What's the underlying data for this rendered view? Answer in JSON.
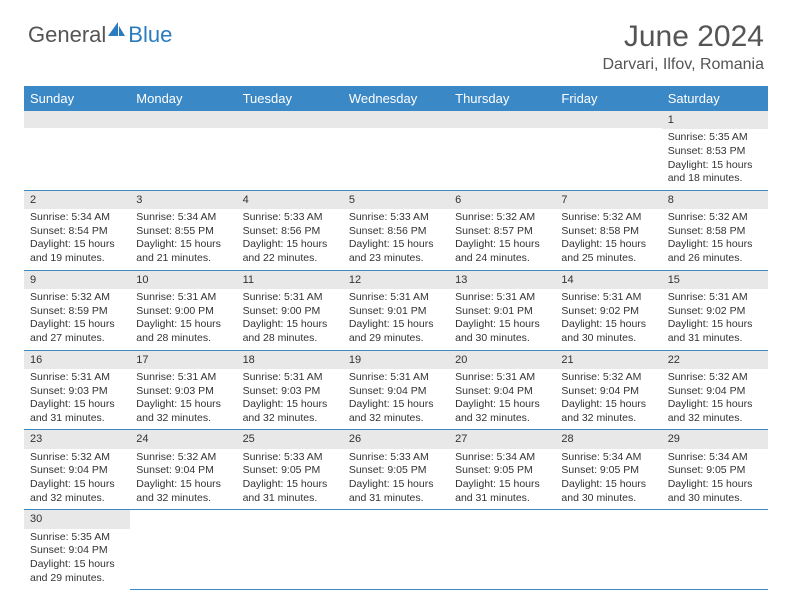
{
  "brand": {
    "general": "General",
    "blue": "Blue"
  },
  "title": "June 2024",
  "location": "Darvari, Ilfov, Romania",
  "colors": {
    "header_bg": "#3b88c6",
    "header_text": "#ffffff",
    "daybar_bg": "#e8e8e8",
    "row_border": "#3b88c6",
    "title_color": "#555555",
    "text_color": "#333333",
    "logo_blue": "#2b7bbf"
  },
  "day_names": [
    "Sunday",
    "Monday",
    "Tuesday",
    "Wednesday",
    "Thursday",
    "Friday",
    "Saturday"
  ],
  "weeks": [
    [
      null,
      null,
      null,
      null,
      null,
      null,
      {
        "n": "1",
        "sunrise": "Sunrise: 5:35 AM",
        "sunset": "Sunset: 8:53 PM",
        "day1": "Daylight: 15 hours",
        "day2": "and 18 minutes."
      }
    ],
    [
      {
        "n": "2",
        "sunrise": "Sunrise: 5:34 AM",
        "sunset": "Sunset: 8:54 PM",
        "day1": "Daylight: 15 hours",
        "day2": "and 19 minutes."
      },
      {
        "n": "3",
        "sunrise": "Sunrise: 5:34 AM",
        "sunset": "Sunset: 8:55 PM",
        "day1": "Daylight: 15 hours",
        "day2": "and 21 minutes."
      },
      {
        "n": "4",
        "sunrise": "Sunrise: 5:33 AM",
        "sunset": "Sunset: 8:56 PM",
        "day1": "Daylight: 15 hours",
        "day2": "and 22 minutes."
      },
      {
        "n": "5",
        "sunrise": "Sunrise: 5:33 AM",
        "sunset": "Sunset: 8:56 PM",
        "day1": "Daylight: 15 hours",
        "day2": "and 23 minutes."
      },
      {
        "n": "6",
        "sunrise": "Sunrise: 5:32 AM",
        "sunset": "Sunset: 8:57 PM",
        "day1": "Daylight: 15 hours",
        "day2": "and 24 minutes."
      },
      {
        "n": "7",
        "sunrise": "Sunrise: 5:32 AM",
        "sunset": "Sunset: 8:58 PM",
        "day1": "Daylight: 15 hours",
        "day2": "and 25 minutes."
      },
      {
        "n": "8",
        "sunrise": "Sunrise: 5:32 AM",
        "sunset": "Sunset: 8:58 PM",
        "day1": "Daylight: 15 hours",
        "day2": "and 26 minutes."
      }
    ],
    [
      {
        "n": "9",
        "sunrise": "Sunrise: 5:32 AM",
        "sunset": "Sunset: 8:59 PM",
        "day1": "Daylight: 15 hours",
        "day2": "and 27 minutes."
      },
      {
        "n": "10",
        "sunrise": "Sunrise: 5:31 AM",
        "sunset": "Sunset: 9:00 PM",
        "day1": "Daylight: 15 hours",
        "day2": "and 28 minutes."
      },
      {
        "n": "11",
        "sunrise": "Sunrise: 5:31 AM",
        "sunset": "Sunset: 9:00 PM",
        "day1": "Daylight: 15 hours",
        "day2": "and 28 minutes."
      },
      {
        "n": "12",
        "sunrise": "Sunrise: 5:31 AM",
        "sunset": "Sunset: 9:01 PM",
        "day1": "Daylight: 15 hours",
        "day2": "and 29 minutes."
      },
      {
        "n": "13",
        "sunrise": "Sunrise: 5:31 AM",
        "sunset": "Sunset: 9:01 PM",
        "day1": "Daylight: 15 hours",
        "day2": "and 30 minutes."
      },
      {
        "n": "14",
        "sunrise": "Sunrise: 5:31 AM",
        "sunset": "Sunset: 9:02 PM",
        "day1": "Daylight: 15 hours",
        "day2": "and 30 minutes."
      },
      {
        "n": "15",
        "sunrise": "Sunrise: 5:31 AM",
        "sunset": "Sunset: 9:02 PM",
        "day1": "Daylight: 15 hours",
        "day2": "and 31 minutes."
      }
    ],
    [
      {
        "n": "16",
        "sunrise": "Sunrise: 5:31 AM",
        "sunset": "Sunset: 9:03 PM",
        "day1": "Daylight: 15 hours",
        "day2": "and 31 minutes."
      },
      {
        "n": "17",
        "sunrise": "Sunrise: 5:31 AM",
        "sunset": "Sunset: 9:03 PM",
        "day1": "Daylight: 15 hours",
        "day2": "and 32 minutes."
      },
      {
        "n": "18",
        "sunrise": "Sunrise: 5:31 AM",
        "sunset": "Sunset: 9:03 PM",
        "day1": "Daylight: 15 hours",
        "day2": "and 32 minutes."
      },
      {
        "n": "19",
        "sunrise": "Sunrise: 5:31 AM",
        "sunset": "Sunset: 9:04 PM",
        "day1": "Daylight: 15 hours",
        "day2": "and 32 minutes."
      },
      {
        "n": "20",
        "sunrise": "Sunrise: 5:31 AM",
        "sunset": "Sunset: 9:04 PM",
        "day1": "Daylight: 15 hours",
        "day2": "and 32 minutes."
      },
      {
        "n": "21",
        "sunrise": "Sunrise: 5:32 AM",
        "sunset": "Sunset: 9:04 PM",
        "day1": "Daylight: 15 hours",
        "day2": "and 32 minutes."
      },
      {
        "n": "22",
        "sunrise": "Sunrise: 5:32 AM",
        "sunset": "Sunset: 9:04 PM",
        "day1": "Daylight: 15 hours",
        "day2": "and 32 minutes."
      }
    ],
    [
      {
        "n": "23",
        "sunrise": "Sunrise: 5:32 AM",
        "sunset": "Sunset: 9:04 PM",
        "day1": "Daylight: 15 hours",
        "day2": "and 32 minutes."
      },
      {
        "n": "24",
        "sunrise": "Sunrise: 5:32 AM",
        "sunset": "Sunset: 9:04 PM",
        "day1": "Daylight: 15 hours",
        "day2": "and 32 minutes."
      },
      {
        "n": "25",
        "sunrise": "Sunrise: 5:33 AM",
        "sunset": "Sunset: 9:05 PM",
        "day1": "Daylight: 15 hours",
        "day2": "and 31 minutes."
      },
      {
        "n": "26",
        "sunrise": "Sunrise: 5:33 AM",
        "sunset": "Sunset: 9:05 PM",
        "day1": "Daylight: 15 hours",
        "day2": "and 31 minutes."
      },
      {
        "n": "27",
        "sunrise": "Sunrise: 5:34 AM",
        "sunset": "Sunset: 9:05 PM",
        "day1": "Daylight: 15 hours",
        "day2": "and 31 minutes."
      },
      {
        "n": "28",
        "sunrise": "Sunrise: 5:34 AM",
        "sunset": "Sunset: 9:05 PM",
        "day1": "Daylight: 15 hours",
        "day2": "and 30 minutes."
      },
      {
        "n": "29",
        "sunrise": "Sunrise: 5:34 AM",
        "sunset": "Sunset: 9:05 PM",
        "day1": "Daylight: 15 hours",
        "day2": "and 30 minutes."
      }
    ],
    [
      {
        "n": "30",
        "sunrise": "Sunrise: 5:35 AM",
        "sunset": "Sunset: 9:04 PM",
        "day1": "Daylight: 15 hours",
        "day2": "and 29 minutes."
      },
      null,
      null,
      null,
      null,
      null,
      null
    ]
  ]
}
